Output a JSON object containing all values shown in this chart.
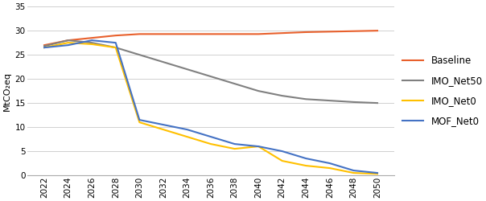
{
  "years": [
    2022,
    2024,
    2026,
    2028,
    2030,
    2032,
    2034,
    2036,
    2038,
    2040,
    2042,
    2044,
    2046,
    2048,
    2050
  ],
  "baseline": [
    27,
    28,
    28.5,
    29,
    29.3,
    29.3,
    29.3,
    29.3,
    29.3,
    29.3,
    29.5,
    29.7,
    29.8,
    29.9,
    30
  ],
  "imo_net50": [
    26.8,
    28,
    27.5,
    26.5,
    25,
    23.5,
    22,
    20.5,
    19,
    17.5,
    16.5,
    15.8,
    15.5,
    15.2,
    15
  ],
  "imo_net0": [
    26.5,
    27.5,
    27.2,
    26.5,
    11,
    9.5,
    8,
    6.5,
    5.5,
    6,
    3,
    2,
    1.5,
    0.5,
    0.3
  ],
  "mof_net0": [
    26.5,
    27,
    28,
    27.5,
    11.5,
    10.5,
    9.5,
    8,
    6.5,
    6,
    5,
    3.5,
    2.5,
    1,
    0.5
  ],
  "series_colors": {
    "Baseline": "#E8602C",
    "IMO_Net50": "#808080",
    "IMO_Net0": "#FFC000",
    "MOF_Net0": "#4472C4"
  },
  "ylabel": "MtCO₂eq",
  "ylim": [
    0,
    35
  ],
  "yticks": [
    0,
    5,
    10,
    15,
    20,
    25,
    30,
    35
  ],
  "axis_fontsize": 8,
  "legend_fontsize": 8.5,
  "tick_fontsize": 7.5,
  "bg_color": "#ffffff",
  "grid_color": "#d0d0d0"
}
